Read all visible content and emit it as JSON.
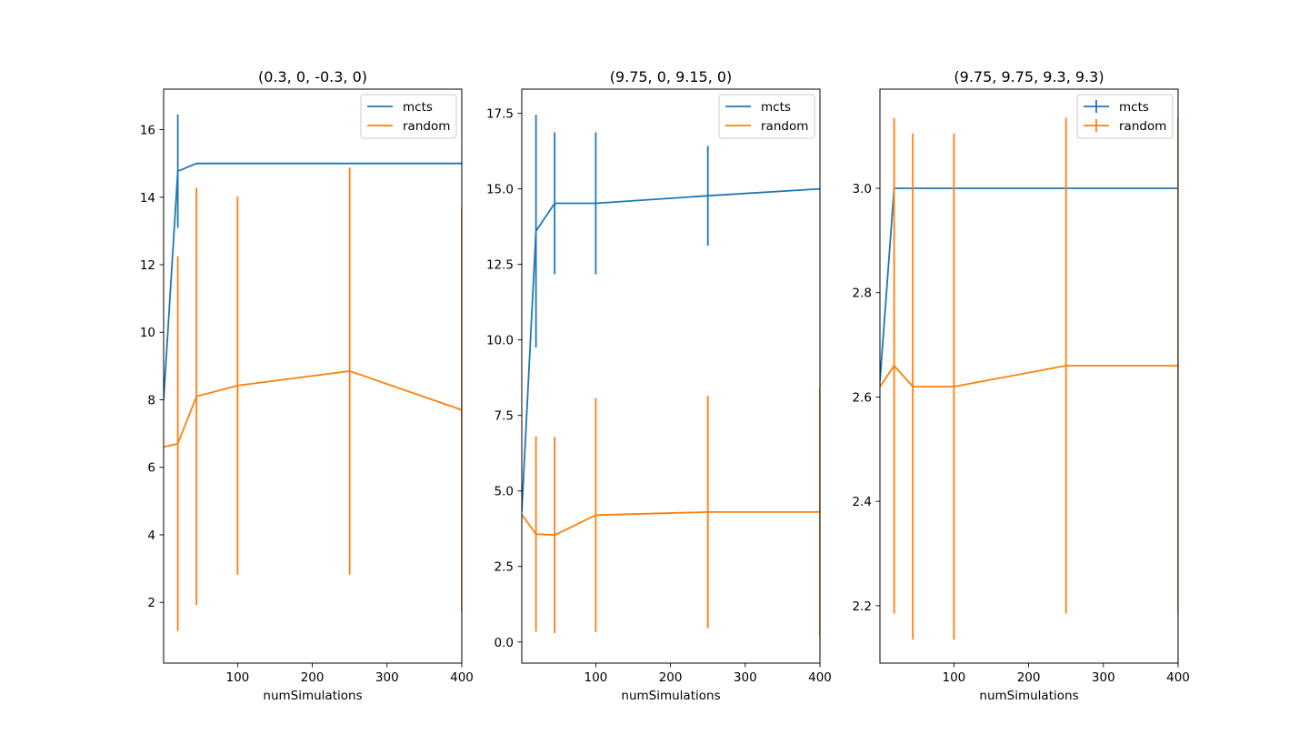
{
  "colors": {
    "mcts": "#1f77b4",
    "random": "#ff7f0e"
  },
  "chart_data": [
    {
      "type": "line",
      "title": "(0.3, 0, -0.3, 0)",
      "xlabel": "numSimulations",
      "ylabel": "",
      "xlim": [
        1,
        400
      ],
      "ylim": [
        0.2,
        17.2
      ],
      "xticks": [
        100,
        200,
        300,
        400
      ],
      "xtick_labels": [
        "100",
        "200",
        "300",
        "400"
      ],
      "yticks": [
        2,
        4,
        6,
        8,
        10,
        12,
        14,
        16
      ],
      "ytick_labels": [
        "2",
        "4",
        "6",
        "8",
        "10",
        "12",
        "14",
        "16"
      ],
      "legend": "top-right",
      "legend_errorbar_markers": false,
      "series": [
        {
          "name": "mcts",
          "x": [
            1,
            20,
            45,
            100,
            250,
            400
          ],
          "y": [
            8.0,
            14.77,
            15.0,
            15.0,
            15.0,
            15.0
          ],
          "err": [
            null,
            1.68,
            null,
            null,
            null,
            null
          ]
        },
        {
          "name": "random",
          "x": [
            1,
            20,
            45,
            100,
            250,
            400
          ],
          "y": [
            6.6,
            6.7,
            8.1,
            8.42,
            8.85,
            7.7
          ],
          "err": [
            null,
            5.55,
            6.18,
            5.6,
            6.03,
            6.0
          ]
        }
      ]
    },
    {
      "type": "line",
      "title": "(9.75, 0, 9.15, 0)",
      "xlabel": "numSimulations",
      "ylabel": "",
      "xlim": [
        1,
        400
      ],
      "ylim": [
        -0.7,
        18.3
      ],
      "xticks": [
        100,
        200,
        300,
        400
      ],
      "xtick_labels": [
        "100",
        "200",
        "300",
        "400"
      ],
      "yticks": [
        0,
        2.5,
        5,
        7.5,
        10,
        12.5,
        15,
        17.5
      ],
      "ytick_labels": [
        "0.0",
        "2.5",
        "5.0",
        "7.5",
        "10.0",
        "12.5",
        "15.0",
        "17.5"
      ],
      "legend": "top-right",
      "legend_errorbar_markers": false,
      "series": [
        {
          "name": "mcts",
          "x": [
            1,
            20,
            45,
            100,
            250,
            400
          ],
          "y": [
            4.3,
            13.6,
            14.52,
            14.52,
            14.77,
            15.0
          ],
          "err": [
            null,
            3.85,
            2.35,
            2.35,
            1.65,
            null
          ]
        },
        {
          "name": "random",
          "x": [
            1,
            20,
            45,
            100,
            250,
            400
          ],
          "y": [
            4.22,
            3.57,
            3.54,
            4.2,
            4.3,
            4.3
          ],
          "err": [
            null,
            3.23,
            3.25,
            3.87,
            3.85,
            4.1
          ]
        }
      ]
    },
    {
      "type": "line",
      "title": "(9.75, 9.75, 9.3, 9.3)",
      "xlabel": "numSimulations",
      "ylabel": "",
      "xlim": [
        1,
        400
      ],
      "ylim": [
        2.09,
        3.19
      ],
      "xticks": [
        100,
        200,
        300,
        400
      ],
      "xtick_labels": [
        "100",
        "200",
        "300",
        "400"
      ],
      "yticks": [
        2.2,
        2.4,
        2.6,
        2.8,
        3.0
      ],
      "ytick_labels": [
        "2.2",
        "2.4",
        "2.6",
        "2.8",
        "3.0"
      ],
      "legend": "top-right",
      "legend_errorbar_markers": true,
      "series": [
        {
          "name": "mcts",
          "x": [
            1,
            20,
            45,
            100,
            250,
            400
          ],
          "y": [
            2.63,
            3.0,
            3.0,
            3.0,
            3.0,
            3.0
          ],
          "err": [
            null,
            null,
            null,
            null,
            null,
            null
          ]
        },
        {
          "name": "random",
          "x": [
            1,
            20,
            45,
            100,
            250,
            400
          ],
          "y": [
            2.62,
            2.66,
            2.62,
            2.62,
            2.66,
            2.66
          ],
          "err": [
            null,
            0.475,
            0.485,
            0.485,
            0.475,
            0.475
          ]
        }
      ]
    }
  ]
}
